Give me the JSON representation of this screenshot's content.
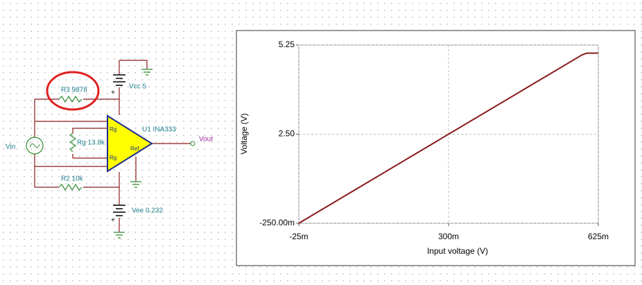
{
  "schematic": {
    "r3": "R3 9878",
    "vcc": "Vcc 5",
    "u1": "U1 INA333",
    "vout": "Vout",
    "vin": "Vin",
    "rg_value": "Rg 13.8k",
    "rg_pin_top": "Rg",
    "rg_pin_bottom": "Rg",
    "ref": "Ref",
    "r2": "R2 10k",
    "vee": "Vee 0.232",
    "plus": "+"
  },
  "chart_data": {
    "type": "line",
    "xlabel": "Input voltage (V)",
    "ylabel": "Voltage (V)",
    "x": [
      -0.025,
      0.3,
      0.59,
      0.6,
      0.625
    ],
    "series": [
      {
        "color": "#8b1a1a",
        "values": [
          -0.25,
          2.5,
          4.95,
          5.0,
          5.0
        ]
      }
    ],
    "xlim": [
      -0.025,
      0.625
    ],
    "ylim": [
      -0.25,
      5.25
    ],
    "xticks": [
      {
        "value": -0.025,
        "label": "-25m"
      },
      {
        "value": 0.3,
        "label": "300m"
      },
      {
        "value": 0.625,
        "label": "625m"
      }
    ],
    "yticks": [
      {
        "value": -0.25,
        "label": "-250.00m"
      },
      {
        "value": 2.5,
        "label": "2.50"
      },
      {
        "value": 5.25,
        "label": "5.25"
      }
    ],
    "grid": true
  }
}
